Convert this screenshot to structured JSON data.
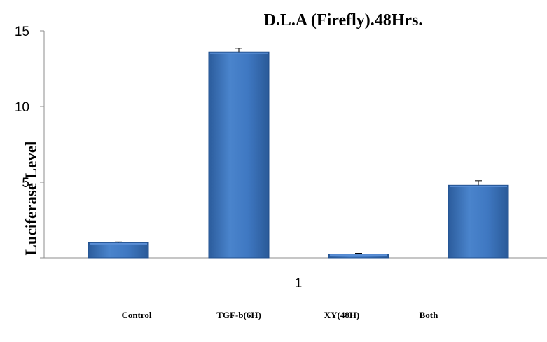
{
  "chart_data": {
    "type": "bar",
    "title": "D.L.A (Firefly).48Hrs.",
    "ylabel": "Luciferase Level",
    "ylim": [
      0,
      15
    ],
    "yticks": [
      {
        "value": 15,
        "label": "15"
      },
      {
        "value": 10,
        "label": "10"
      },
      {
        "value": 5,
        "label": "5"
      }
    ],
    "x_tick_label": "1",
    "categories": [
      "Control",
      "TGF-b(6H)",
      "XY(48H)",
      "Both"
    ],
    "values": [
      1.0,
      13.6,
      0.25,
      4.8
    ],
    "errors": [
      0.05,
      0.25,
      0.05,
      0.3
    ],
    "bar_color": "#3a70b8",
    "bar_highlight": "#5b8fd6",
    "bar_shadow": "#1f4e8c",
    "grid": false,
    "legend": "none"
  }
}
